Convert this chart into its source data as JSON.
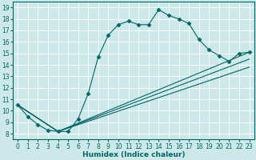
{
  "title": "",
  "xlabel": "Humidex (Indice chaleur)",
  "bg_color": "#cce8e8",
  "grid_color": "#ffffff",
  "line_color": "#006666",
  "xlim": [
    -0.5,
    23.5
  ],
  "ylim": [
    7.5,
    19.5
  ],
  "xticks": [
    0,
    1,
    2,
    3,
    4,
    5,
    6,
    7,
    8,
    9,
    10,
    11,
    12,
    13,
    14,
    15,
    16,
    17,
    18,
    19,
    20,
    21,
    22,
    23
  ],
  "yticks": [
    8,
    9,
    10,
    11,
    12,
    13,
    14,
    15,
    16,
    17,
    18,
    19
  ],
  "series": [
    {
      "x": [
        0,
        1,
        2,
        3,
        4,
        5,
        6,
        7,
        8,
        9,
        10,
        11,
        12,
        13,
        14,
        15,
        16,
        17,
        18,
        19,
        20,
        21,
        22,
        23
      ],
      "y": [
        10.5,
        9.5,
        8.8,
        8.3,
        8.2,
        8.2,
        9.3,
        11.5,
        14.7,
        16.6,
        17.5,
        17.8,
        17.5,
        17.5,
        18.8,
        18.3,
        18.0,
        17.6,
        16.2,
        15.3,
        14.8,
        14.3,
        15.0,
        15.1
      ],
      "marker": "D",
      "markersize": 2.5,
      "linestyle": "-",
      "has_marker": true
    },
    {
      "x": [
        0,
        4,
        23
      ],
      "y": [
        10.5,
        8.2,
        15.1
      ],
      "marker": null,
      "markersize": 0,
      "linestyle": "-",
      "has_marker": false
    },
    {
      "x": [
        0,
        4,
        23
      ],
      "y": [
        10.5,
        8.2,
        14.5
      ],
      "marker": null,
      "markersize": 0,
      "linestyle": "-",
      "has_marker": false
    },
    {
      "x": [
        0,
        4,
        23
      ],
      "y": [
        10.5,
        8.2,
        13.8
      ],
      "marker": null,
      "markersize": 0,
      "linestyle": "-",
      "has_marker": false
    }
  ],
  "title_fontsize": 6.5,
  "axis_fontsize": 6.5,
  "tick_fontsize": 5.5
}
